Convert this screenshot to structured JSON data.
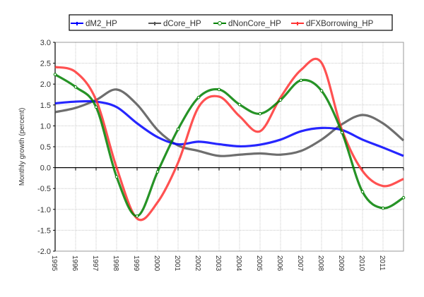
{
  "chart_data": {
    "type": "line",
    "title": "",
    "xlabel": "",
    "ylabel": "Monthly growth (percent)",
    "x": [
      1995,
      1996,
      1997,
      1998,
      1999,
      2000,
      2001,
      2002,
      2003,
      2004,
      2005,
      2006,
      2007,
      2008,
      2009,
      2010,
      2011,
      2012
    ],
    "xtick_labels": [
      "1995",
      "1996",
      "1997",
      "1998",
      "1999",
      "2000",
      "2001",
      "2002",
      "2003",
      "2004",
      "2005",
      "2006",
      "2007",
      "2008",
      "2009",
      "2010",
      "2011"
    ],
    "xlim": [
      1995,
      2012
    ],
    "ylim": [
      -2.0,
      3.0
    ],
    "ytick_labels": [
      "3.0",
      "2.5",
      "2.0",
      "1.5",
      "1.0",
      "0.5",
      "0.0",
      "-0.5",
      "-1.0",
      "-1.5",
      "-2.0"
    ],
    "yticks": [
      3.0,
      2.5,
      2.0,
      1.5,
      1.0,
      0.5,
      0.0,
      -0.5,
      -1.0,
      -1.5,
      -2.0
    ],
    "grid": true,
    "legend_position": "top",
    "series": [
      {
        "name": "dM2_HP",
        "color": "#0000ff",
        "marker": "dash",
        "values": [
          1.54,
          1.58,
          1.58,
          1.45,
          1.06,
          0.73,
          0.56,
          0.62,
          0.56,
          0.51,
          0.55,
          0.67,
          0.87,
          0.95,
          0.9,
          0.67,
          0.48,
          0.28
        ]
      },
      {
        "name": "dCore_HP",
        "color": "#555555",
        "marker": "dash",
        "values": [
          1.33,
          1.43,
          1.62,
          1.87,
          1.51,
          0.9,
          0.53,
          0.4,
          0.28,
          0.31,
          0.34,
          0.31,
          0.4,
          0.67,
          1.04,
          1.26,
          1.06,
          0.65
        ]
      },
      {
        "name": "dNonCore_HP",
        "color": "#008000",
        "marker": "circle",
        "values": [
          2.23,
          1.93,
          1.45,
          -0.22,
          -1.16,
          -0.1,
          0.92,
          1.68,
          1.87,
          1.51,
          1.29,
          1.62,
          2.09,
          1.84,
          0.84,
          -0.58,
          -0.97,
          -0.72
        ]
      },
      {
        "name": "dFXBorrowing_HP",
        "color": "#ff3333",
        "marker": "dash",
        "values": [
          2.41,
          2.29,
          1.62,
          0.0,
          -1.22,
          -0.83,
          0.12,
          1.45,
          1.7,
          1.23,
          0.87,
          1.68,
          2.34,
          2.51,
          0.9,
          -0.08,
          -0.44,
          -0.27
        ]
      }
    ]
  }
}
